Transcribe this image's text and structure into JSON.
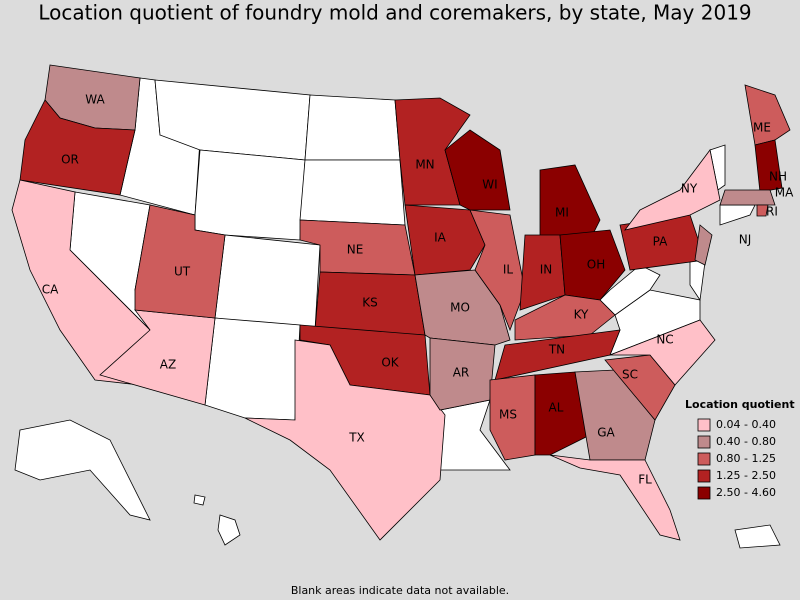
{
  "title": "Location quotient of foundry mold and coremakers, by state, May 2019",
  "legend": {
    "title": "Location quotient",
    "items": [
      {
        "label": "0.04 - 0.40",
        "color": "#ffc0c8"
      },
      {
        "label": "0.40 - 0.80",
        "color": "#bf8a8c"
      },
      {
        "label": "0.80 - 1.25",
        "color": "#cd5c5c"
      },
      {
        "label": "1.25 - 2.50",
        "color": "#b22222"
      },
      {
        "label": "2.50 - 4.60",
        "color": "#8b0000"
      }
    ]
  },
  "states": [
    {
      "label": "WA",
      "color": "#bf8a8c"
    },
    {
      "label": "OR",
      "color": "#b22222"
    },
    {
      "label": "CA",
      "color": "#ffc0c8"
    },
    {
      "label": "AZ",
      "color": "#ffc0c8"
    },
    {
      "label": "UT",
      "color": "#cd5c5c"
    },
    {
      "label": "NE",
      "color": "#cd5c5c"
    },
    {
      "label": "KS",
      "color": "#b22222"
    },
    {
      "label": "OK",
      "color": "#b22222"
    },
    {
      "label": "TX",
      "color": "#ffc0c8"
    },
    {
      "label": "MN",
      "color": "#b22222"
    },
    {
      "label": "IA",
      "color": "#b22222"
    },
    {
      "label": "MO",
      "color": "#bf8a8c"
    },
    {
      "label": "AR",
      "color": "#bf8a8c"
    },
    {
      "label": "IL",
      "color": "#cd5c5c"
    },
    {
      "label": "WI",
      "color": "#8b0000"
    },
    {
      "label": "MI",
      "color": "#8b0000"
    },
    {
      "label": "IN",
      "color": "#b22222"
    },
    {
      "label": "OH",
      "color": "#8b0000"
    },
    {
      "label": "KY",
      "color": "#cd5c5c"
    },
    {
      "label": "TN",
      "color": "#b22222"
    },
    {
      "label": "MS",
      "color": "#cd5c5c"
    },
    {
      "label": "AL",
      "color": "#8b0000"
    },
    {
      "label": "GA",
      "color": "#bf8a8c"
    },
    {
      "label": "SC",
      "color": "#cd5c5c"
    },
    {
      "label": "NC",
      "color": "#ffc0c8"
    },
    {
      "label": "FL",
      "color": "#ffc0c8"
    },
    {
      "label": "PA",
      "color": "#b22222"
    },
    {
      "label": "NY",
      "color": "#ffc0c8"
    },
    {
      "label": "NJ",
      "color": "#bf8a8c"
    },
    {
      "label": "ME",
      "color": "#cd5c5c"
    },
    {
      "label": "NH",
      "color": "#8b0000"
    },
    {
      "label": "MA",
      "color": "#bf8a8c"
    },
    {
      "label": "RI",
      "color": "#cd5c5c"
    }
  ],
  "footnote": "Blank areas indicate data not available."
}
